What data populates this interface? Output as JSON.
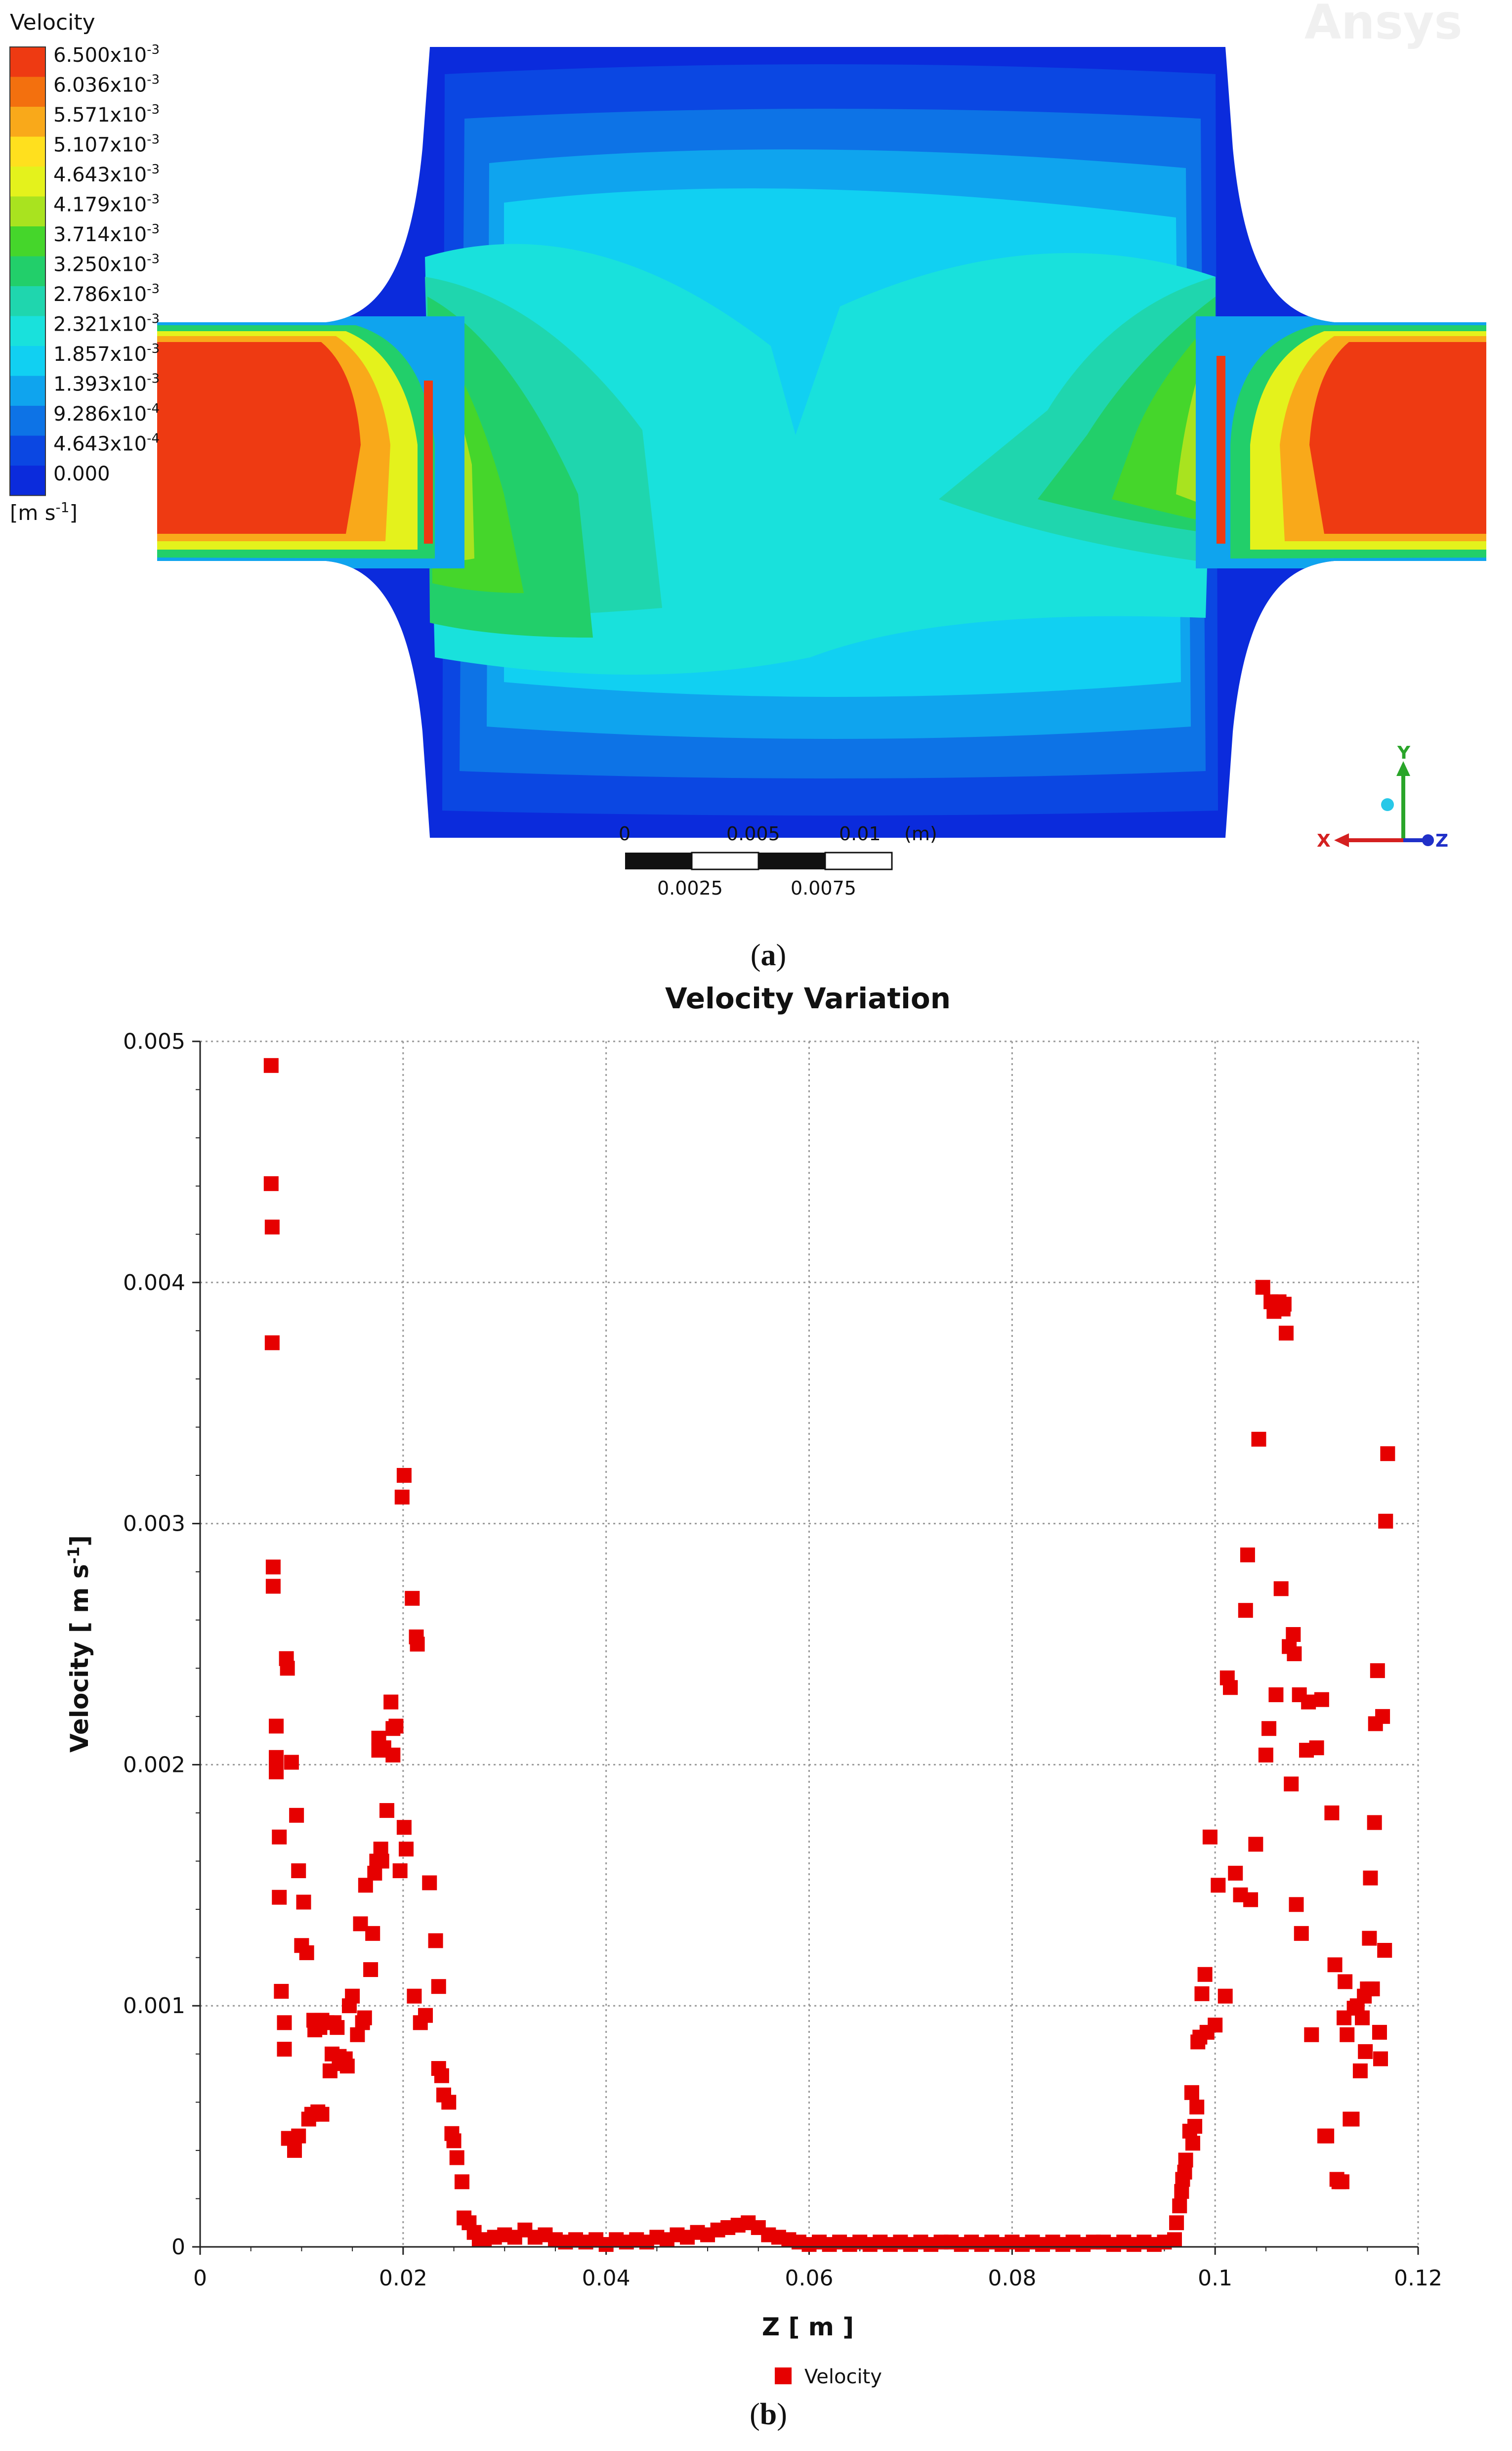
{
  "panel_a": {
    "label_open": "(",
    "label_letter": "a",
    "label_close": ")",
    "legend": {
      "title": "Velocity",
      "levels": [
        {
          "mant": "6.500x10",
          "exp": "-3",
          "color": "#ee3a12"
        },
        {
          "mant": "6.036x10",
          "exp": "-3",
          "color": "#f3700e"
        },
        {
          "mant": "5.571x10",
          "exp": "-3",
          "color": "#f9a91a"
        },
        {
          "mant": "5.107x10",
          "exp": "-3",
          "color": "#ffe01e"
        },
        {
          "mant": "4.643x10",
          "exp": "-3",
          "color": "#e4f21c"
        },
        {
          "mant": "4.179x10",
          "exp": "-3",
          "color": "#a9e31f"
        },
        {
          "mant": "3.714x10",
          "exp": "-3",
          "color": "#45d62b"
        },
        {
          "mant": "3.250x10",
          "exp": "-3",
          "color": "#22cf6a"
        },
        {
          "mant": "2.786x10",
          "exp": "-3",
          "color": "#1fd6ae"
        },
        {
          "mant": "2.321x10",
          "exp": "-3",
          "color": "#19e1dc"
        },
        {
          "mant": "1.857x10",
          "exp": "-3",
          "color": "#11d0f2"
        },
        {
          "mant": "1.393x10",
          "exp": "-3",
          "color": "#0fa4ee"
        },
        {
          "mant": "9.286x10",
          "exp": "-4",
          "color": "#0d73e6"
        },
        {
          "mant": "4.643x10",
          "exp": "-4",
          "color": "#0b47e2"
        },
        {
          "mant": "0.000",
          "exp": "",
          "color": "#0b2bdc"
        }
      ],
      "unit_open": "[m s",
      "unit_exp": "-1",
      "unit_close": "]"
    },
    "watermark": "Ansys",
    "scale_bar": {
      "top_labels": [
        "0",
        "0.005",
        "0.01",
        "(m)"
      ],
      "bottom_labels": [
        "0.0025",
        "0.0075"
      ]
    },
    "triad": {
      "x": "X",
      "y": "Y",
      "z": "Z"
    }
  },
  "panel_b": {
    "label_open": "(",
    "label_letter": "b",
    "label_close": ")"
  },
  "chart_data": {
    "type": "scatter",
    "title": "Velocity Variation",
    "xlabel": "Z [ m ]",
    "ylabel_text": "Velocity [ m s",
    "ylabel_exp": "-1",
    "ylabel_close": "]",
    "xlim": [
      0,
      0.12
    ],
    "ylim": [
      0,
      0.005
    ],
    "x_ticks": [
      0,
      0.02,
      0.04,
      0.06,
      0.08,
      0.1,
      0.12
    ],
    "x_tick_labels": [
      "0",
      "0.02",
      "0.04",
      "0.06",
      "0.08",
      "0.1",
      "0.12"
    ],
    "y_ticks": [
      0,
      0.001,
      0.002,
      0.003,
      0.004,
      0.005
    ],
    "y_tick_labels": [
      "0",
      "0.001",
      "0.002",
      "0.003",
      "0.004",
      "0.005"
    ],
    "grid": true,
    "legend": "bottom-center",
    "series": [
      {
        "name": "Velocity",
        "color": "#e60000",
        "marker": "square",
        "points": [
          [
            0.007,
            0.0049
          ],
          [
            0.007,
            0.00441
          ],
          [
            0.0071,
            0.00423
          ],
          [
            0.0071,
            0.00375
          ],
          [
            0.0072,
            0.00282
          ],
          [
            0.0072,
            0.00274
          ],
          [
            0.0075,
            0.00216
          ],
          [
            0.0075,
            0.00203
          ],
          [
            0.0075,
            0.00197
          ],
          [
            0.0078,
            0.0017
          ],
          [
            0.0078,
            0.00145
          ],
          [
            0.008,
            0.00106
          ],
          [
            0.0083,
            0.00093
          ],
          [
            0.0083,
            0.00082
          ],
          [
            0.0085,
            0.00244
          ],
          [
            0.0086,
            0.0024
          ],
          [
            0.0087,
            0.00045
          ],
          [
            0.009,
            0.00201
          ],
          [
            0.0093,
            0.00044
          ],
          [
            0.0093,
            0.0004
          ],
          [
            0.0095,
            0.00179
          ],
          [
            0.0097,
            0.00156
          ],
          [
            0.0097,
            0.00046
          ],
          [
            0.01,
            0.00125
          ],
          [
            0.0102,
            0.00143
          ],
          [
            0.0105,
            0.00122
          ],
          [
            0.0107,
            0.00053
          ],
          [
            0.011,
            0.00055
          ],
          [
            0.0112,
            0.00094
          ],
          [
            0.0113,
            0.0009
          ],
          [
            0.0116,
            0.00056
          ],
          [
            0.0118,
            0.00091
          ],
          [
            0.012,
            0.00094
          ],
          [
            0.012,
            0.00055
          ],
          [
            0.0125,
            0.00093
          ],
          [
            0.0128,
            0.00073
          ],
          [
            0.013,
            0.0008
          ],
          [
            0.0132,
            0.00093
          ],
          [
            0.0135,
            0.00091
          ],
          [
            0.0137,
            0.00079
          ],
          [
            0.014,
            0.00076
          ],
          [
            0.0143,
            0.00078
          ],
          [
            0.0145,
            0.00075
          ],
          [
            0.0147,
            0.001
          ],
          [
            0.015,
            0.00104
          ],
          [
            0.0155,
            0.00088
          ],
          [
            0.0158,
            0.00134
          ],
          [
            0.016,
            0.00093
          ],
          [
            0.0162,
            0.00095
          ],
          [
            0.0163,
            0.0015
          ],
          [
            0.0168,
            0.00115
          ],
          [
            0.017,
            0.0013
          ],
          [
            0.0172,
            0.00155
          ],
          [
            0.0174,
            0.0016
          ],
          [
            0.0176,
            0.00206
          ],
          [
            0.0176,
            0.00211
          ],
          [
            0.0178,
            0.00165
          ],
          [
            0.0179,
            0.0016
          ],
          [
            0.0181,
            0.00207
          ],
          [
            0.0184,
            0.00181
          ],
          [
            0.0188,
            0.00226
          ],
          [
            0.019,
            0.00215
          ],
          [
            0.019,
            0.00204
          ],
          [
            0.0193,
            0.00216
          ],
          [
            0.0197,
            0.00156
          ],
          [
            0.0199,
            0.00311
          ],
          [
            0.0201,
            0.0032
          ],
          [
            0.0201,
            0.00174
          ],
          [
            0.0203,
            0.00165
          ],
          [
            0.0209,
            0.00269
          ],
          [
            0.0211,
            0.00104
          ],
          [
            0.0213,
            0.00253
          ],
          [
            0.0214,
            0.0025
          ],
          [
            0.0217,
            0.00093
          ],
          [
            0.0222,
            0.00096
          ],
          [
            0.0226,
            0.00151
          ],
          [
            0.0232,
            0.00127
          ],
          [
            0.0235,
            0.00108
          ],
          [
            0.0235,
            0.00074
          ],
          [
            0.0238,
            0.00071
          ],
          [
            0.024,
            0.00063
          ],
          [
            0.0245,
            0.0006
          ],
          [
            0.0248,
            0.00047
          ],
          [
            0.025,
            0.00044
          ],
          [
            0.0253,
            0.00037
          ],
          [
            0.0258,
            0.00027
          ],
          [
            0.026,
            0.00012
          ],
          [
            0.0265,
            0.0001
          ],
          [
            0.027,
            6e-05
          ],
          [
            0.0275,
            3e-05
          ],
          [
            0.028,
            3e-05
          ],
          [
            0.029,
            4e-05
          ],
          [
            0.03,
            5e-05
          ],
          [
            0.031,
            4e-05
          ],
          [
            0.032,
            7e-05
          ],
          [
            0.033,
            4e-05
          ],
          [
            0.034,
            5e-05
          ],
          [
            0.035,
            3e-05
          ],
          [
            0.036,
            2e-05
          ],
          [
            0.037,
            3e-05
          ],
          [
            0.038,
            2e-05
          ],
          [
            0.039,
            3e-05
          ],
          [
            0.04,
            1e-05
          ],
          [
            0.041,
            3e-05
          ],
          [
            0.042,
            2e-05
          ],
          [
            0.043,
            3e-05
          ],
          [
            0.044,
            2e-05
          ],
          [
            0.045,
            4e-05
          ],
          [
            0.046,
            3e-05
          ],
          [
            0.047,
            5e-05
          ],
          [
            0.048,
            4e-05
          ],
          [
            0.049,
            6e-05
          ],
          [
            0.05,
            5e-05
          ],
          [
            0.051,
            7e-05
          ],
          [
            0.052,
            8e-05
          ],
          [
            0.053,
            9e-05
          ],
          [
            0.054,
            0.0001
          ],
          [
            0.055,
            8e-05
          ],
          [
            0.056,
            5e-05
          ],
          [
            0.057,
            4e-05
          ],
          [
            0.058,
            3e-05
          ],
          [
            0.059,
            2e-05
          ],
          [
            0.06,
            1e-05
          ],
          [
            0.061,
            2e-05
          ],
          [
            0.062,
            1e-05
          ],
          [
            0.063,
            2e-05
          ],
          [
            0.064,
            1e-05
          ],
          [
            0.065,
            2e-05
          ],
          [
            0.066,
            1e-05
          ],
          [
            0.067,
            2e-05
          ],
          [
            0.068,
            1e-05
          ],
          [
            0.069,
            2e-05
          ],
          [
            0.07,
            1e-05
          ],
          [
            0.071,
            2e-05
          ],
          [
            0.072,
            1e-05
          ],
          [
            0.073,
            2e-05
          ],
          [
            0.074,
            2e-05
          ],
          [
            0.075,
            1e-05
          ],
          [
            0.076,
            2e-05
          ],
          [
            0.077,
            1e-05
          ],
          [
            0.078,
            2e-05
          ],
          [
            0.079,
            1e-05
          ],
          [
            0.08,
            2e-05
          ],
          [
            0.081,
            1e-05
          ],
          [
            0.082,
            2e-05
          ],
          [
            0.083,
            1e-05
          ],
          [
            0.084,
            2e-05
          ],
          [
            0.085,
            1e-05
          ],
          [
            0.086,
            2e-05
          ],
          [
            0.087,
            1e-05
          ],
          [
            0.088,
            2e-05
          ],
          [
            0.089,
            2e-05
          ],
          [
            0.09,
            1e-05
          ],
          [
            0.091,
            2e-05
          ],
          [
            0.092,
            1e-05
          ],
          [
            0.093,
            2e-05
          ],
          [
            0.094,
            1e-05
          ],
          [
            0.095,
            2e-05
          ],
          [
            0.096,
            3e-05
          ],
          [
            0.0962,
            0.0001
          ],
          [
            0.0965,
            0.00017
          ],
          [
            0.0967,
            0.00023
          ],
          [
            0.0968,
            0.00028
          ],
          [
            0.097,
            0.00031
          ],
          [
            0.0971,
            0.00036
          ],
          [
            0.0975,
            0.00048
          ],
          [
            0.0977,
            0.00064
          ],
          [
            0.0978,
            0.00043
          ],
          [
            0.098,
            0.0005
          ],
          [
            0.0982,
            0.00058
          ],
          [
            0.0983,
            0.00085
          ],
          [
            0.0985,
            0.00087
          ],
          [
            0.0987,
            0.00105
          ],
          [
            0.099,
            0.00113
          ],
          [
            0.0992,
            0.00089
          ],
          [
            0.0995,
            0.0017
          ],
          [
            0.1,
            0.00092
          ],
          [
            0.1003,
            0.0015
          ],
          [
            0.101,
            0.00104
          ],
          [
            0.1012,
            0.00236
          ],
          [
            0.1015,
            0.00232
          ],
          [
            0.102,
            0.00155
          ],
          [
            0.1025,
            0.00146
          ],
          [
            0.103,
            0.00264
          ],
          [
            0.1032,
            0.00287
          ],
          [
            0.1035,
            0.00144
          ],
          [
            0.104,
            0.00167
          ],
          [
            0.1043,
            0.00335
          ],
          [
            0.1047,
            0.00398
          ],
          [
            0.105,
            0.00204
          ],
          [
            0.1053,
            0.00215
          ],
          [
            0.1055,
            0.00392
          ],
          [
            0.1058,
            0.00388
          ],
          [
            0.106,
            0.00229
          ],
          [
            0.1063,
            0.00392
          ],
          [
            0.1065,
            0.00273
          ],
          [
            0.1067,
            0.00389
          ],
          [
            0.1068,
            0.00391
          ],
          [
            0.107,
            0.00379
          ],
          [
            0.1073,
            0.00249
          ],
          [
            0.1075,
            0.00192
          ],
          [
            0.1077,
            0.00254
          ],
          [
            0.1078,
            0.00246
          ],
          [
            0.108,
            0.00142
          ],
          [
            0.1083,
            0.00229
          ],
          [
            0.1085,
            0.0013
          ],
          [
            0.109,
            0.00206
          ],
          [
            0.1092,
            0.00226
          ],
          [
            0.1095,
            0.00088
          ],
          [
            0.11,
            0.00207
          ],
          [
            0.1105,
            0.00227
          ],
          [
            0.1108,
            0.00046
          ],
          [
            0.111,
            0.00046
          ],
          [
            0.1115,
            0.0018
          ],
          [
            0.1118,
            0.00117
          ],
          [
            0.112,
            0.00028
          ],
          [
            0.1122,
            0.00027
          ],
          [
            0.1125,
            0.00027
          ],
          [
            0.1127,
            0.00095
          ],
          [
            0.1128,
            0.0011
          ],
          [
            0.113,
            0.00088
          ],
          [
            0.1133,
            0.00053
          ],
          [
            0.1135,
            0.00053
          ],
          [
            0.1137,
            0.00099
          ],
          [
            0.114,
            0.001
          ],
          [
            0.1143,
            0.00073
          ],
          [
            0.1145,
            0.00095
          ],
          [
            0.1147,
            0.00104
          ],
          [
            0.1148,
            0.00081
          ],
          [
            0.115,
            0.00107
          ],
          [
            0.1152,
            0.00128
          ],
          [
            0.1153,
            0.00153
          ],
          [
            0.1155,
            0.00107
          ],
          [
            0.1157,
            0.00176
          ],
          [
            0.1158,
            0.00217
          ],
          [
            0.116,
            0.00239
          ],
          [
            0.1162,
            0.00089
          ],
          [
            0.1163,
            0.00078
          ],
          [
            0.1165,
            0.0022
          ],
          [
            0.1167,
            0.00123
          ],
          [
            0.1168,
            0.00301
          ],
          [
            0.117,
            0.00329
          ]
        ]
      }
    ]
  }
}
